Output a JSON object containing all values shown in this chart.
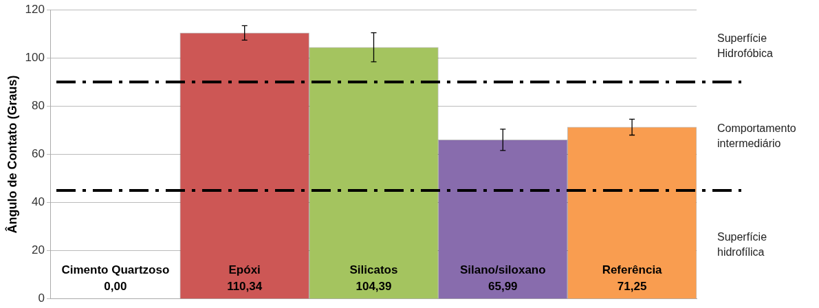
{
  "chart_data": {
    "type": "bar",
    "ylabel": "Ângulo de Contato (Graus)",
    "categories": [
      "Cimento Quartzoso",
      "Epóxi",
      "Silicatos",
      "Silano/siloxano",
      "Referência"
    ],
    "values": [
      0,
      110.34,
      104.39,
      65.99,
      71.25
    ],
    "colors": [
      "#ffffff",
      "#cd5755",
      "#a4c45f",
      "#886cad",
      "#f99d50"
    ],
    "errors": [
      null,
      3,
      6,
      4.4,
      3.3
    ],
    "value_labels": [
      "0,00",
      "110,34",
      "104,39",
      "65,99",
      "71,25"
    ],
    "ylim": [
      0,
      120
    ],
    "yticks": [
      0,
      20,
      40,
      60,
      80,
      100,
      120
    ],
    "grid": "y",
    "ref_lines": [
      {
        "axis": "y",
        "value": 90,
        "color": "#000000",
        "line_style": "dashdot"
      },
      {
        "axis": "y",
        "value": 45,
        "color": "#000000",
        "line_style": "dashdot"
      }
    ],
    "annotations": [
      "Superfície\nHidrofóbica",
      "Comportamento\nintermediário",
      "Superfície\nhidrofílica"
    ]
  }
}
